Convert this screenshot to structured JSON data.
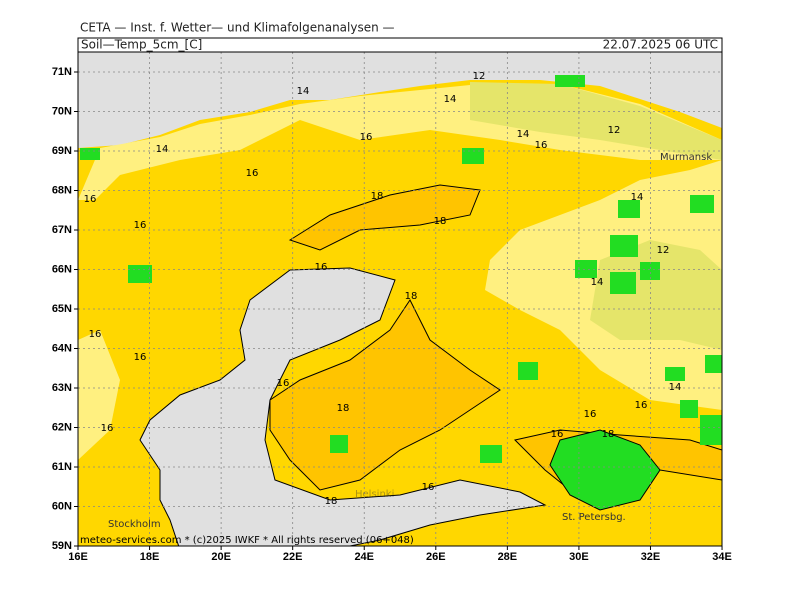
{
  "header": {
    "institute": "CETA — Inst. f. Wetter— und Klimafolgenanalysen —",
    "field": "Soil—Temp_5cm_[C]",
    "valid_time": "22.07.2025 06 UTC"
  },
  "footer": "meteo-services.com * (c)2025 IWKF * All rights reserved (06+048)",
  "map": {
    "lat_ticks": [
      {
        "value": 59,
        "label": "59N"
      },
      {
        "value": 60,
        "label": "60N"
      },
      {
        "value": 61,
        "label": "61N"
      },
      {
        "value": 62,
        "label": "62N"
      },
      {
        "value": 63,
        "label": "63N"
      },
      {
        "value": 64,
        "label": "64N"
      },
      {
        "value": 65,
        "label": "65N"
      },
      {
        "value": 66,
        "label": "66N"
      },
      {
        "value": 67,
        "label": "67N"
      },
      {
        "value": 68,
        "label": "68N"
      },
      {
        "value": 69,
        "label": "69N"
      },
      {
        "value": 70,
        "label": "70N"
      },
      {
        "value": 71,
        "label": "71N"
      }
    ],
    "lon_ticks": [
      {
        "value": 16,
        "label": "16E"
      },
      {
        "value": 18,
        "label": "18E"
      },
      {
        "value": 20,
        "label": "20E"
      },
      {
        "value": 22,
        "label": "22E"
      },
      {
        "value": 24,
        "label": "24E"
      },
      {
        "value": 26,
        "label": "26E"
      },
      {
        "value": 28,
        "label": "28E"
      },
      {
        "value": 30,
        "label": "30E"
      },
      {
        "value": 32,
        "label": "32E"
      },
      {
        "value": 34,
        "label": "34E"
      }
    ],
    "cities": [
      "Stockholm",
      "Helsinki",
      "St. Petersbg.",
      "Murmansk"
    ],
    "contour_labels": [
      12,
      14,
      14,
      16,
      14,
      12,
      16,
      14,
      16,
      16,
      18,
      18,
      16,
      14,
      12,
      16,
      18,
      14,
      16,
      16,
      16,
      18,
      14,
      16,
      16,
      16,
      16,
      18,
      18,
      16
    ]
  }
}
